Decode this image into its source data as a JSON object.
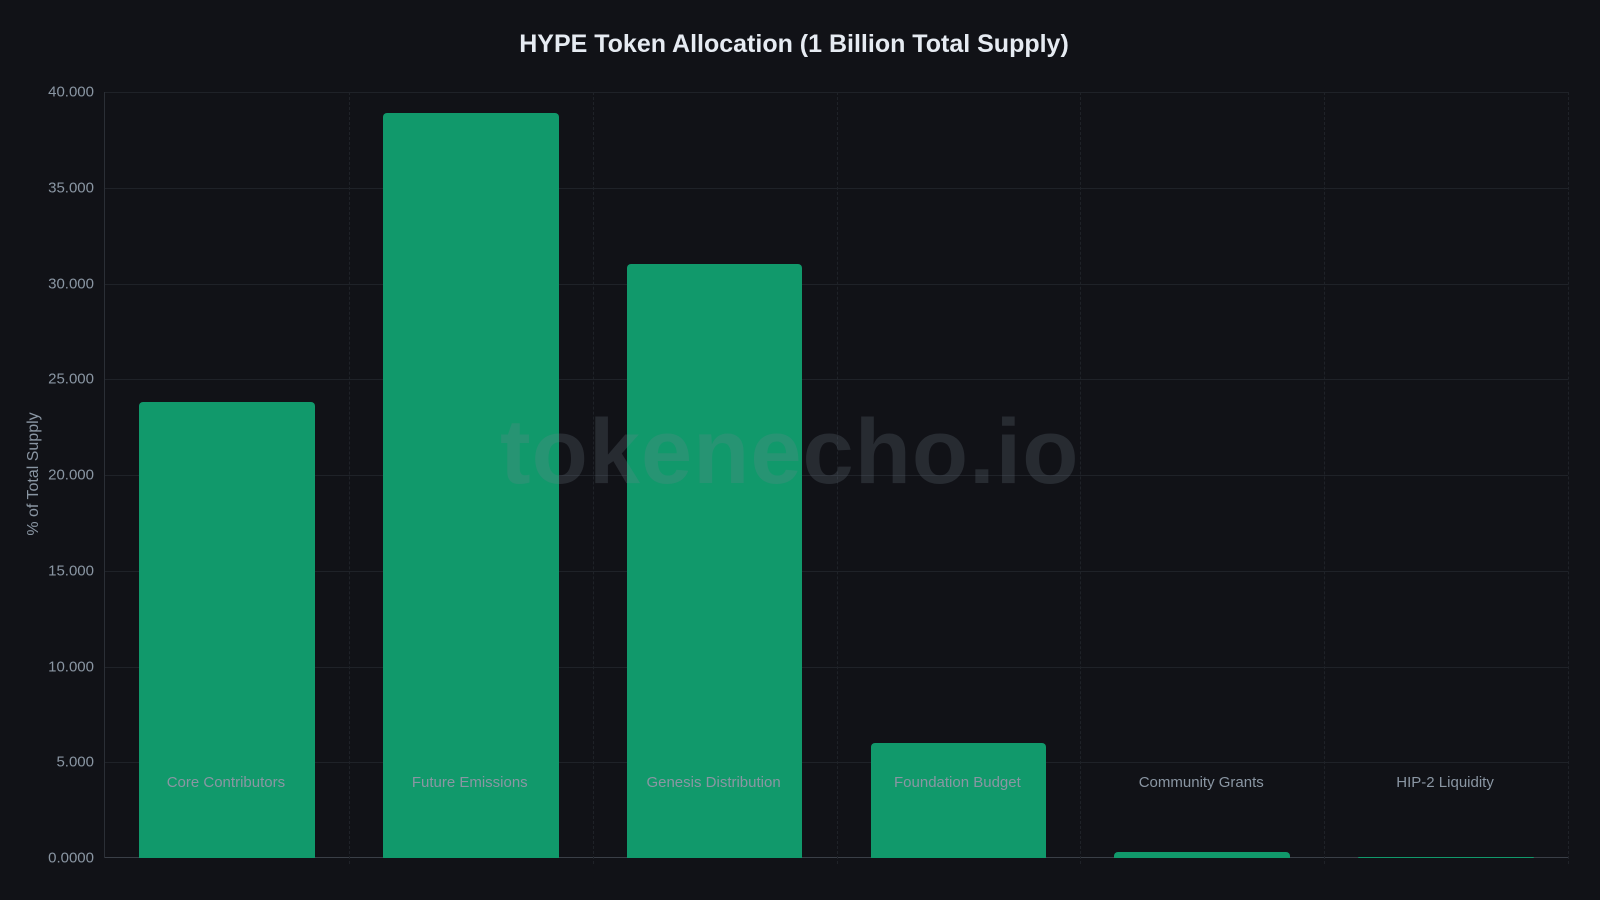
{
  "chart_data": {
    "type": "bar",
    "title": "HYPE Token Allocation (1 Billion Total Supply)",
    "xlabel": "",
    "ylabel": "% of Total Supply",
    "categories": [
      "Core Contributors",
      "Future Emissions",
      "Genesis Distribution",
      "Foundation Budget",
      "Community Grants",
      "HIP-2 Liquidity"
    ],
    "values": [
      23.8,
      38.888,
      31.0,
      6.0,
      0.3,
      0.012
    ],
    "ylim": [
      0,
      40
    ],
    "yticks": [
      "0.0000",
      "5.000",
      "10.000",
      "15.000",
      "20.000",
      "25.000",
      "30.000",
      "35.000",
      "40.000"
    ],
    "grid": true,
    "legend": null,
    "bar_color": "#11996b"
  },
  "watermark": "tokenecho.io",
  "colors": {
    "background": "#111217",
    "bar": "#11996b",
    "text": "#8a96a3",
    "title": "#e6ebf2"
  }
}
